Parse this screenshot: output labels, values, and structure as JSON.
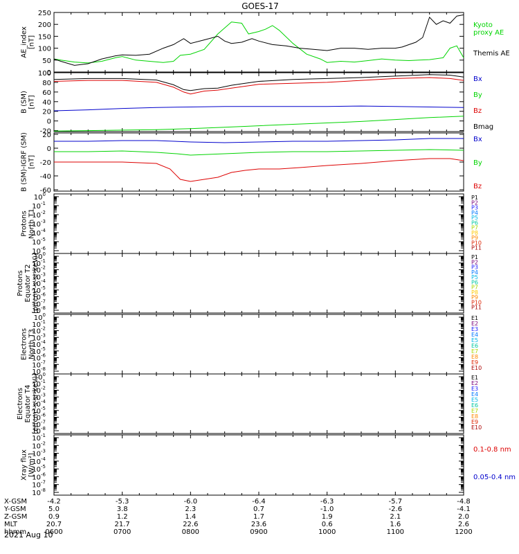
{
  "title": "GOES-17",
  "colors": {
    "black": "#000000",
    "green": "#00d400",
    "blue": "#0000cc",
    "red": "#dd0000",
    "p1": "#000000",
    "p2": "#7a007a",
    "p3": "#1a1aff",
    "p4": "#0077ff",
    "p5": "#00b5e6",
    "p6": "#00c8a0",
    "p7": "#a8d800",
    "p8": "#ffc800",
    "p9": "#ff8800",
    "p10": "#dd2200",
    "p11": "#aa0000"
  },
  "chart_data": [
    {
      "type": "line",
      "ylabel": [
        "AE_index",
        "[nT]"
      ],
      "ylim": [
        0,
        250
      ],
      "yticks": [
        "0",
        "50",
        "100",
        "150",
        "200",
        "250"
      ],
      "yticks_values": [
        0,
        50,
        100,
        150,
        200,
        250
      ],
      "legend": [
        {
          "label": "Kyoto",
          "color": "green"
        },
        {
          "label": "proxy AE",
          "color": "green"
        },
        {
          "label": "Themis AE",
          "color": "black"
        }
      ],
      "series": [
        {
          "name": "Kyoto proxy AE",
          "color": "green",
          "x": [
            0.0,
            0.1,
            0.3,
            0.5,
            0.7,
            0.9,
            1.0,
            1.2,
            1.4,
            1.6,
            1.75,
            1.85,
            2.0,
            2.2,
            2.4,
            2.6,
            2.75,
            2.85,
            3.0,
            3.1,
            3.2,
            3.3,
            3.5,
            3.7,
            3.9,
            4.0,
            4.2,
            4.4,
            4.6,
            4.8,
            5.0,
            5.2,
            5.35,
            5.5,
            5.7,
            5.8,
            5.9,
            6.0
          ],
          "values": [
            55,
            50,
            42,
            38,
            45,
            60,
            65,
            50,
            45,
            40,
            45,
            70,
            75,
            95,
            160,
            210,
            205,
            160,
            170,
            180,
            195,
            175,
            120,
            75,
            55,
            40,
            45,
            42,
            48,
            55,
            50,
            48,
            50,
            52,
            60,
            100,
            110,
            60
          ]
        },
        {
          "name": "Themis AE",
          "color": "black",
          "x": [
            0.0,
            0.1,
            0.3,
            0.5,
            0.7,
            0.9,
            1.0,
            1.2,
            1.4,
            1.6,
            1.75,
            1.9,
            2.0,
            2.2,
            2.4,
            2.5,
            2.6,
            2.75,
            2.9,
            3.0,
            3.2,
            3.4,
            3.6,
            3.8,
            4.0,
            4.2,
            4.4,
            4.6,
            4.8,
            5.0,
            5.1,
            5.2,
            5.3,
            5.4,
            5.5,
            5.6,
            5.7,
            5.8,
            5.9,
            6.0
          ],
          "values": [
            55,
            45,
            28,
            35,
            55,
            68,
            72,
            70,
            75,
            100,
            115,
            140,
            120,
            135,
            150,
            130,
            120,
            125,
            140,
            130,
            115,
            110,
            100,
            95,
            90,
            100,
            100,
            95,
            100,
            100,
            105,
            115,
            125,
            145,
            230,
            200,
            215,
            205,
            235,
            240
          ]
        }
      ]
    },
    {
      "type": "line",
      "ylabel": [
        "B (SM)",
        "[nT]"
      ],
      "ylim": [
        -22,
        100
      ],
      "yticks": [
        "-20",
        "0",
        "20",
        "40",
        "60",
        "80",
        "100"
      ],
      "yticks_values": [
        -20,
        0,
        20,
        40,
        60,
        80,
        100
      ],
      "legend": [
        {
          "label": "Bx",
          "color": "blue"
        },
        {
          "label": "By",
          "color": "green"
        },
        {
          "label": "Bz",
          "color": "red"
        },
        {
          "label": "Bmag",
          "color": "black"
        }
      ],
      "series": [
        {
          "name": "Bmag",
          "color": "black",
          "x": [
            0.0,
            0.5,
            1.0,
            1.5,
            1.75,
            1.9,
            2.0,
            2.2,
            2.4,
            2.6,
            2.8,
            3.0,
            3.5,
            4.0,
            4.5,
            5.0,
            5.5,
            5.8,
            6.0
          ],
          "values": [
            86,
            88,
            88,
            85,
            75,
            65,
            63,
            67,
            68,
            74,
            78,
            82,
            86,
            88,
            90,
            93,
            96,
            95,
            91
          ]
        },
        {
          "name": "Bz",
          "color": "red",
          "x": [
            0.0,
            0.5,
            1.0,
            1.5,
            1.75,
            1.9,
            2.0,
            2.2,
            2.4,
            2.6,
            2.8,
            3.0,
            3.5,
            4.0,
            4.5,
            5.0,
            5.5,
            5.8,
            6.0
          ],
          "values": [
            82,
            84,
            84,
            80,
            70,
            60,
            56,
            62,
            64,
            68,
            72,
            76,
            78,
            80,
            84,
            88,
            90,
            88,
            84
          ]
        },
        {
          "name": "Bx",
          "color": "blue",
          "x": [
            0.0,
            0.5,
            1.0,
            1.5,
            2.0,
            2.5,
            3.0,
            3.5,
            4.0,
            4.5,
            5.0,
            5.5,
            6.0
          ],
          "values": [
            21,
            23,
            26,
            28,
            29,
            30,
            30,
            30,
            30,
            31,
            30,
            29,
            28
          ]
        },
        {
          "name": "By",
          "color": "green",
          "x": [
            0.0,
            0.5,
            1.0,
            1.5,
            2.0,
            2.5,
            3.0,
            3.5,
            4.0,
            4.5,
            5.0,
            5.5,
            6.0
          ],
          "values": [
            -21,
            -20,
            -19,
            -18,
            -16,
            -13,
            -10,
            -7,
            -4,
            -1,
            3,
            7,
            10
          ]
        }
      ]
    },
    {
      "type": "line",
      "ylabel": [
        "B (SM)-IGRF (SM)",
        "[nT]"
      ],
      "ylim": [
        -62,
        22
      ],
      "yticks": [
        "-60",
        "-40",
        "-20",
        "0",
        "20"
      ],
      "yticks_values": [
        -60,
        -40,
        -20,
        0,
        20
      ],
      "legend": [
        {
          "label": "Bx",
          "color": "blue"
        },
        {
          "label": "By",
          "color": "green"
        },
        {
          "label": "Bz",
          "color": "red"
        }
      ],
      "series": [
        {
          "name": "Bx",
          "color": "blue",
          "x": [
            0.0,
            0.5,
            1.0,
            1.5,
            2.0,
            2.5,
            3.0,
            3.5,
            4.0,
            4.5,
            5.0,
            5.5,
            6.0
          ],
          "values": [
            10,
            10,
            11,
            11,
            9,
            8,
            9,
            10,
            10,
            11,
            12,
            14,
            14
          ]
        },
        {
          "name": "By",
          "color": "green",
          "x": [
            0.0,
            0.5,
            1.0,
            1.5,
            1.8,
            2.0,
            2.5,
            3.0,
            3.5,
            4.0,
            4.5,
            5.0,
            5.5,
            6.0
          ],
          "values": [
            -5,
            -5,
            -4,
            -6,
            -8,
            -10,
            -8,
            -6,
            -5,
            -5,
            -4,
            -3,
            -2,
            -3
          ]
        },
        {
          "name": "Bz",
          "color": "red",
          "x": [
            0.0,
            0.5,
            1.0,
            1.5,
            1.7,
            1.85,
            2.0,
            2.2,
            2.4,
            2.6,
            2.8,
            3.0,
            3.3,
            3.6,
            4.0,
            4.5,
            5.0,
            5.5,
            5.8,
            6.0
          ],
          "values": [
            -20,
            -20,
            -20,
            -22,
            -30,
            -45,
            -48,
            -45,
            -42,
            -35,
            -32,
            -30,
            -30,
            -28,
            -25,
            -22,
            -18,
            -15,
            -15,
            -18
          ]
        }
      ]
    },
    {
      "type": "line",
      "ylabel": [
        "Protons",
        "North T1"
      ],
      "yticks": [
        "10",
        "10",
        "10",
        "10",
        "10",
        "10",
        "10"
      ],
      "yticks_exp": [
        "0",
        "-1",
        "-2",
        "-3",
        "-4",
        "-5",
        "-6"
      ],
      "legend": [
        "P1",
        "P2",
        "P3",
        "P4",
        "P5",
        "P6",
        "P7",
        "P8",
        "P9",
        "P10",
        "P11"
      ],
      "legend_colors": [
        "p1",
        "p2",
        "p3",
        "p4",
        "p5",
        "p6",
        "p7",
        "p8",
        "p9",
        "p10",
        "p11"
      ]
    },
    {
      "type": "line",
      "ylabel": [
        "Protons",
        "Equator T2",
        "[p/(cm²-s-sr-keV)]"
      ],
      "yticks": [
        "10",
        "10",
        "10",
        "10",
        "10",
        "10",
        "10",
        "10",
        "10"
      ],
      "yticks_exp": [
        "0",
        "-1",
        "-2",
        "-3",
        "-4",
        "-5",
        "-6",
        "-7",
        "-8"
      ],
      "legend": [
        "P1",
        "P2",
        "P3",
        "P4",
        "P5",
        "P6",
        "P7",
        "P8",
        "P9",
        "P10",
        "P11"
      ],
      "legend_colors": [
        "p1",
        "p2",
        "p3",
        "p4",
        "p5",
        "p6",
        "p7",
        "p8",
        "p9",
        "p10",
        "p11"
      ]
    },
    {
      "type": "line",
      "ylabel": [
        "Electrons",
        "North T3"
      ],
      "yticks": [
        "10",
        "10",
        "10",
        "10",
        "10",
        "10",
        "10",
        "10",
        "10"
      ],
      "yticks_exp": [
        "0",
        "-1",
        "-2",
        "-3",
        "-4",
        "-5",
        "-6",
        "-7",
        "-8"
      ],
      "legend": [
        "E1",
        "E2",
        "E3",
        "E4",
        "E5",
        "E6",
        "E7",
        "E8",
        "E9",
        "E10"
      ],
      "legend_colors": [
        "p1",
        "p2",
        "p3",
        "p4",
        "p5",
        "p6",
        "p7",
        "p9",
        "p10",
        "p11"
      ]
    },
    {
      "type": "line",
      "ylabel": [
        "Electrons",
        "Equator T4",
        "[e/(cm²-s-sr-keV)]"
      ],
      "yticks": [
        "10",
        "10",
        "10",
        "10",
        "10",
        "10",
        "10",
        "10",
        "10"
      ],
      "yticks_exp": [
        "0",
        "-1",
        "-2",
        "-3",
        "-4",
        "-5",
        "-6",
        "-7",
        "-8"
      ],
      "legend": [
        "E1",
        "E2",
        "E3",
        "E4",
        "E5",
        "E6",
        "E7",
        "E8",
        "E9",
        "E10"
      ],
      "legend_colors": [
        "p1",
        "p2",
        "p3",
        "p4",
        "p5",
        "p6",
        "p7",
        "p9",
        "p10",
        "p11"
      ]
    },
    {
      "type": "line",
      "ylabel": [
        "Xray flux",
        "[W/m²]"
      ],
      "yticks": [
        "10",
        "10",
        "10",
        "10",
        "10",
        "10",
        "10",
        "10"
      ],
      "yticks_exp": [
        "-1",
        "-2",
        "-3",
        "-4",
        "-5",
        "-6",
        "-7",
        "-8"
      ],
      "legend": [
        {
          "label": "0.1-0.8 nm",
          "color": "red"
        },
        {
          "label": "0.05-0.4 nm",
          "color": "blue"
        }
      ]
    }
  ],
  "time_axis": {
    "labels": [
      "X-GSM",
      "Y-GSM",
      "Z-GSM",
      "MLT",
      "hhmm"
    ],
    "columns": [
      [
        "-4.2",
        "5.0",
        "0.9",
        "20.7",
        "0600"
      ],
      [
        "-5.3",
        "3.8",
        "1.2",
        "21.7",
        "0700"
      ],
      [
        "-6.0",
        "2.3",
        "1.4",
        "22.6",
        "0800"
      ],
      [
        "-6.4",
        "0.7",
        "1.7",
        "23.6",
        "0900"
      ],
      [
        "-6.3",
        "-1.0",
        "1.9",
        "0.6",
        "1000"
      ],
      [
        "-5.7",
        "-2.6",
        "2.1",
        "1.6",
        "1100"
      ],
      [
        "-4.8",
        "-4.1",
        "2.0",
        "2.6",
        "1200"
      ]
    ],
    "date": "2021 Aug 10"
  }
}
